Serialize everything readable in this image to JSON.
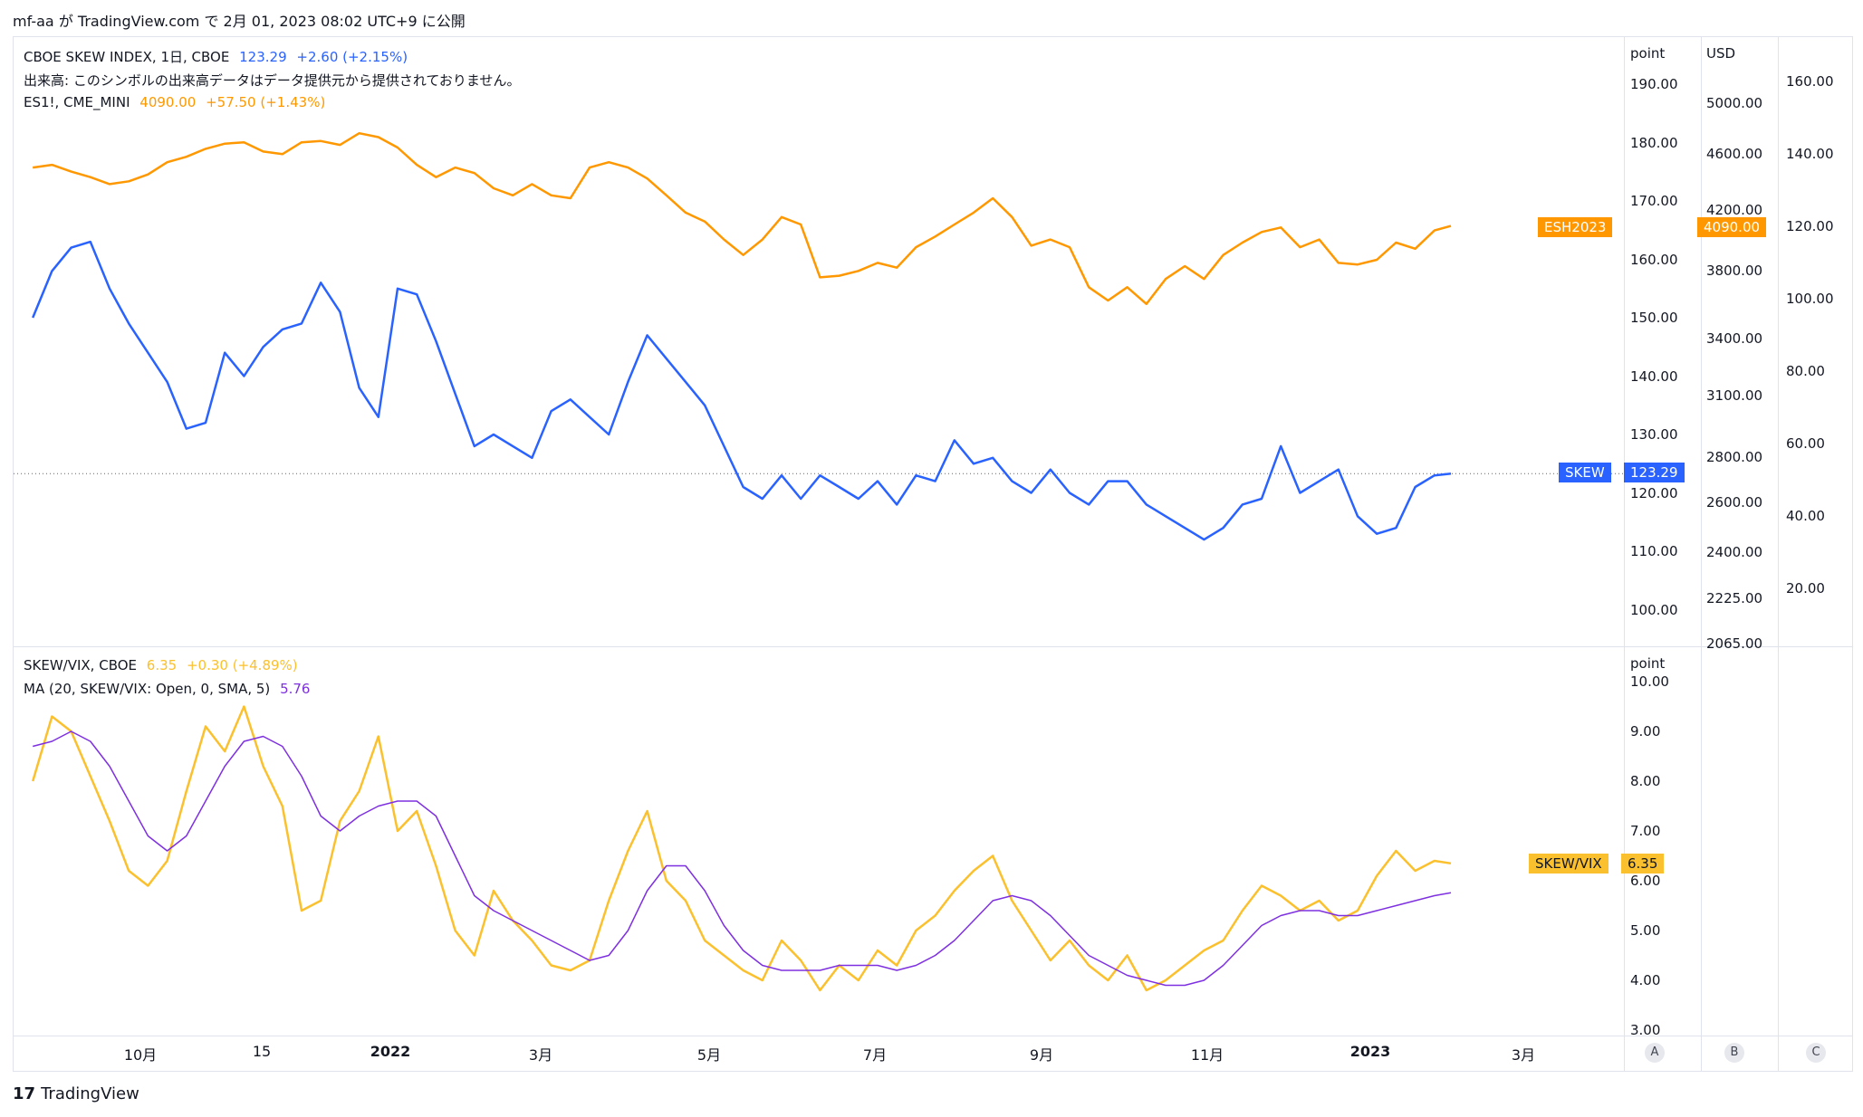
{
  "header": {
    "text": "mf-aa が TradingView.com で 2月 01, 2023 08:02 UTC+9 に公開"
  },
  "main_pane": {
    "legend": {
      "skew_name": "CBOE SKEW INDEX, 1日, CBOE",
      "skew_value": "123.29",
      "skew_change": "+2.60 (+2.15%)",
      "volume_note": "出来高: このシンボルの出来高データはデータ提供元から提供されておりません。",
      "es_name": "ES1!, CME_MINI",
      "es_value": "4090.00",
      "es_change": "+57.50 (+1.43%)"
    },
    "axis_point_header": "point",
    "axis_usd_header": "USD",
    "point_ticks": [
      "190.00",
      "180.00",
      "170.00",
      "160.00",
      "150.00",
      "140.00",
      "130.00",
      "120.00",
      "110.00",
      "100.00"
    ],
    "usd_ticks": [
      "5000.00",
      "4600.00",
      "4200.00",
      "3800.00",
      "3400.00",
      "3100.00",
      "2800.00",
      "2600.00",
      "2400.00",
      "2225.00",
      "2065.00"
    ],
    "c_ticks": [
      "160.00",
      "140.00",
      "120.00",
      "100.00",
      "80.00",
      "60.00",
      "40.00",
      "20.00"
    ],
    "tags": {
      "es_symbol": "ESH2023",
      "es_value": "4090.00",
      "skew_symbol": "SKEW",
      "skew_value": "123.29"
    }
  },
  "lower_pane": {
    "legend": {
      "ratio_name": "SKEW/VIX, CBOE",
      "ratio_value": "6.35",
      "ratio_change": "+0.30 (+4.89%)",
      "ma_name": "MA (20, SKEW/VIX: Open, 0, SMA, 5)",
      "ma_value": "5.76"
    },
    "axis_header": "point",
    "ticks": [
      "10.00",
      "9.00",
      "8.00",
      "7.00",
      "6.00",
      "5.00",
      "4.00",
      "3.00"
    ],
    "tags": {
      "symbol": "SKEW/VIX",
      "value": "6.35"
    }
  },
  "time_axis": [
    "10月",
    "15",
    "2022",
    "3月",
    "5月",
    "7月",
    "9月",
    "11月",
    "2023",
    "3月"
  ],
  "scale_buttons": [
    "A",
    "B",
    "C"
  ],
  "footer": {
    "logo": "TradingView"
  },
  "colors": {
    "skew": "#2962ff",
    "es": "#ff9800",
    "ratio": "#fbc02d",
    "ma": "#7e30e1"
  },
  "chart_data": [
    {
      "type": "line",
      "series": [
        {
          "name": "SKEW",
          "x": [
            "2021-09-01",
            "2021-09-08",
            "2021-09-15",
            "2021-09-22",
            "2021-09-29",
            "2021-10-06",
            "2021-10-13",
            "2021-10-20",
            "2021-10-27",
            "2021-11-03",
            "2021-11-10",
            "2021-11-17",
            "2021-11-24",
            "2021-12-01",
            "2021-12-08",
            "2021-12-15",
            "2021-12-22",
            "2021-12-29",
            "2022-01-05",
            "2022-01-12",
            "2022-01-19",
            "2022-01-26",
            "2022-02-02",
            "2022-02-09",
            "2022-02-16",
            "2022-02-23",
            "2022-03-02",
            "2022-03-09",
            "2022-03-16",
            "2022-03-23",
            "2022-03-30",
            "2022-04-06",
            "2022-04-13",
            "2022-04-20",
            "2022-04-27",
            "2022-05-04",
            "2022-05-11",
            "2022-05-18",
            "2022-05-25",
            "2022-06-01",
            "2022-06-08",
            "2022-06-15",
            "2022-06-22",
            "2022-06-29",
            "2022-07-06",
            "2022-07-13",
            "2022-07-20",
            "2022-07-27",
            "2022-08-03",
            "2022-08-10",
            "2022-08-17",
            "2022-08-24",
            "2022-08-31",
            "2022-09-07",
            "2022-09-14",
            "2022-09-21",
            "2022-09-28",
            "2022-10-05",
            "2022-10-12",
            "2022-10-19",
            "2022-10-26",
            "2022-11-02",
            "2022-11-09",
            "2022-11-16",
            "2022-11-23",
            "2022-11-30",
            "2022-12-07",
            "2022-12-14",
            "2022-12-21",
            "2022-12-28",
            "2023-01-04",
            "2023-01-11",
            "2023-01-18",
            "2023-01-25",
            "2023-01-31"
          ],
          "values": [
            150,
            158,
            162,
            163,
            155,
            149,
            144,
            139,
            131,
            132,
            144,
            140,
            145,
            148,
            149,
            156,
            151,
            138,
            133,
            155,
            154,
            146,
            137,
            128,
            130,
            128,
            126,
            134,
            136,
            133,
            130,
            139,
            147,
            143,
            139,
            135,
            128,
            121,
            119,
            123,
            119,
            123,
            121,
            119,
            122,
            118,
            123,
            122,
            129,
            125,
            126,
            122,
            120,
            124,
            120,
            118,
            122,
            122,
            118,
            116,
            114,
            112,
            114,
            118,
            119,
            128,
            120,
            122,
            124,
            116,
            113,
            114,
            121,
            123,
            123.29
          ]
        },
        {
          "name": "ES1!",
          "x": [
            "2021-09-01",
            "2021-09-08",
            "2021-09-15",
            "2021-09-22",
            "2021-09-29",
            "2021-10-06",
            "2021-10-13",
            "2021-10-20",
            "2021-10-27",
            "2021-11-03",
            "2021-11-10",
            "2021-11-17",
            "2021-11-24",
            "2021-12-01",
            "2021-12-08",
            "2021-12-15",
            "2021-12-22",
            "2021-12-29",
            "2022-01-05",
            "2022-01-12",
            "2022-01-19",
            "2022-01-26",
            "2022-02-02",
            "2022-02-09",
            "2022-02-16",
            "2022-02-23",
            "2022-03-02",
            "2022-03-09",
            "2022-03-16",
            "2022-03-23",
            "2022-03-30",
            "2022-04-06",
            "2022-04-13",
            "2022-04-20",
            "2022-04-27",
            "2022-05-04",
            "2022-05-11",
            "2022-05-18",
            "2022-05-25",
            "2022-06-01",
            "2022-06-08",
            "2022-06-15",
            "2022-06-22",
            "2022-06-29",
            "2022-07-06",
            "2022-07-13",
            "2022-07-20",
            "2022-07-27",
            "2022-08-03",
            "2022-08-10",
            "2022-08-17",
            "2022-08-24",
            "2022-08-31",
            "2022-09-07",
            "2022-09-14",
            "2022-09-21",
            "2022-09-28",
            "2022-10-05",
            "2022-10-12",
            "2022-10-19",
            "2022-10-26",
            "2022-11-02",
            "2022-11-09",
            "2022-11-16",
            "2022-11-23",
            "2022-11-30",
            "2022-12-07",
            "2022-12-14",
            "2022-12-21",
            "2022-12-28",
            "2023-01-04",
            "2023-01-11",
            "2023-01-18",
            "2023-01-25",
            "2023-01-31"
          ],
          "values": [
            4500,
            4520,
            4470,
            4430,
            4380,
            4400,
            4450,
            4540,
            4580,
            4640,
            4680,
            4690,
            4620,
            4600,
            4690,
            4700,
            4670,
            4760,
            4730,
            4650,
            4520,
            4430,
            4500,
            4460,
            4350,
            4300,
            4380,
            4300,
            4280,
            4500,
            4540,
            4500,
            4420,
            4300,
            4180,
            4120,
            4000,
            3900,
            4000,
            4150,
            4100,
            3760,
            3770,
            3800,
            3850,
            3820,
            3950,
            4020,
            4100,
            4180,
            4280,
            4150,
            3960,
            4000,
            3950,
            3700,
            3620,
            3700,
            3600,
            3750,
            3830,
            3750,
            3900,
            3980,
            4050,
            4080,
            3950,
            4000,
            3850,
            3840,
            3870,
            3980,
            3940,
            4060,
            4090
          ]
        }
      ],
      "y_axes": [
        {
          "unit": "point",
          "ylim": [
            95,
            195
          ],
          "series": "SKEW"
        },
        {
          "unit": "USD",
          "scale": "log",
          "ylim": [
            2065,
            5300
          ],
          "series": "ES1!"
        }
      ],
      "grid": false,
      "legend": "top-left"
    },
    {
      "type": "line",
      "series": [
        {
          "name": "SKEW/VIX",
          "x": [
            "2021-09-01",
            "2021-09-08",
            "2021-09-15",
            "2021-09-22",
            "2021-09-29",
            "2021-10-06",
            "2021-10-13",
            "2021-10-20",
            "2021-10-27",
            "2021-11-03",
            "2021-11-10",
            "2021-11-17",
            "2021-11-24",
            "2021-12-01",
            "2021-12-08",
            "2021-12-15",
            "2021-12-22",
            "2021-12-29",
            "2022-01-05",
            "2022-01-12",
            "2022-01-19",
            "2022-01-26",
            "2022-02-02",
            "2022-02-09",
            "2022-02-16",
            "2022-02-23",
            "2022-03-02",
            "2022-03-09",
            "2022-03-16",
            "2022-03-23",
            "2022-03-30",
            "2022-04-06",
            "2022-04-13",
            "2022-04-20",
            "2022-04-27",
            "2022-05-04",
            "2022-05-11",
            "2022-05-18",
            "2022-05-25",
            "2022-06-01",
            "2022-06-08",
            "2022-06-15",
            "2022-06-22",
            "2022-06-29",
            "2022-07-06",
            "2022-07-13",
            "2022-07-20",
            "2022-07-27",
            "2022-08-03",
            "2022-08-10",
            "2022-08-17",
            "2022-08-24",
            "2022-08-31",
            "2022-09-07",
            "2022-09-14",
            "2022-09-21",
            "2022-09-28",
            "2022-10-05",
            "2022-10-12",
            "2022-10-19",
            "2022-10-26",
            "2022-11-02",
            "2022-11-09",
            "2022-11-16",
            "2022-11-23",
            "2022-11-30",
            "2022-12-07",
            "2022-12-14",
            "2022-12-21",
            "2022-12-28",
            "2023-01-04",
            "2023-01-11",
            "2023-01-18",
            "2023-01-25",
            "2023-01-31"
          ],
          "values": [
            8.0,
            9.3,
            9.0,
            8.1,
            7.2,
            6.2,
            5.9,
            6.4,
            7.8,
            9.1,
            8.6,
            9.5,
            8.3,
            7.5,
            5.4,
            5.6,
            7.2,
            7.8,
            8.9,
            7.0,
            7.4,
            6.3,
            5.0,
            4.5,
            5.8,
            5.2,
            4.8,
            4.3,
            4.2,
            4.4,
            5.6,
            6.6,
            7.4,
            6.0,
            5.6,
            4.8,
            4.5,
            4.2,
            4.0,
            4.8,
            4.4,
            3.8,
            4.3,
            4.0,
            4.6,
            4.3,
            5.0,
            5.3,
            5.8,
            6.2,
            6.5,
            5.6,
            5.0,
            4.4,
            4.8,
            4.3,
            4.0,
            4.5,
            3.8,
            4.0,
            4.3,
            4.6,
            4.8,
            5.4,
            5.9,
            5.7,
            5.4,
            5.6,
            5.2,
            5.4,
            6.1,
            6.6,
            6.2,
            6.4,
            6.35
          ]
        },
        {
          "name": "MA",
          "x": [
            "2021-09-01",
            "2021-09-08",
            "2021-09-15",
            "2021-09-22",
            "2021-09-29",
            "2021-10-06",
            "2021-10-13",
            "2021-10-20",
            "2021-10-27",
            "2021-11-03",
            "2021-11-10",
            "2021-11-17",
            "2021-11-24",
            "2021-12-01",
            "2021-12-08",
            "2021-12-15",
            "2021-12-22",
            "2021-12-29",
            "2022-01-05",
            "2022-01-12",
            "2022-01-19",
            "2022-01-26",
            "2022-02-02",
            "2022-02-09",
            "2022-02-16",
            "2022-02-23",
            "2022-03-02",
            "2022-03-09",
            "2022-03-16",
            "2022-03-23",
            "2022-03-30",
            "2022-04-06",
            "2022-04-13",
            "2022-04-20",
            "2022-04-27",
            "2022-05-04",
            "2022-05-11",
            "2022-05-18",
            "2022-05-25",
            "2022-06-01",
            "2022-06-08",
            "2022-06-15",
            "2022-06-22",
            "2022-06-29",
            "2022-07-06",
            "2022-07-13",
            "2022-07-20",
            "2022-07-27",
            "2022-08-03",
            "2022-08-10",
            "2022-08-17",
            "2022-08-24",
            "2022-08-31",
            "2022-09-07",
            "2022-09-14",
            "2022-09-21",
            "2022-09-28",
            "2022-10-05",
            "2022-10-12",
            "2022-10-19",
            "2022-10-26",
            "2022-11-02",
            "2022-11-09",
            "2022-11-16",
            "2022-11-23",
            "2022-11-30",
            "2022-12-07",
            "2022-12-14",
            "2022-12-21",
            "2022-12-28",
            "2023-01-04",
            "2023-01-11",
            "2023-01-18",
            "2023-01-25",
            "2023-01-31"
          ],
          "values": [
            8.7,
            8.8,
            9.0,
            8.8,
            8.3,
            7.6,
            6.9,
            6.6,
            6.9,
            7.6,
            8.3,
            8.8,
            8.9,
            8.7,
            8.1,
            7.3,
            7.0,
            7.3,
            7.5,
            7.6,
            7.6,
            7.3,
            6.5,
            5.7,
            5.4,
            5.2,
            5.0,
            4.8,
            4.6,
            4.4,
            4.5,
            5.0,
            5.8,
            6.3,
            6.3,
            5.8,
            5.1,
            4.6,
            4.3,
            4.2,
            4.2,
            4.2,
            4.3,
            4.3,
            4.3,
            4.2,
            4.3,
            4.5,
            4.8,
            5.2,
            5.6,
            5.7,
            5.6,
            5.3,
            4.9,
            4.5,
            4.3,
            4.1,
            4.0,
            3.9,
            3.9,
            4.0,
            4.3,
            4.7,
            5.1,
            5.3,
            5.4,
            5.4,
            5.3,
            5.3,
            5.4,
            5.5,
            5.6,
            5.7,
            5.76
          ]
        }
      ],
      "ylim": [
        3,
        10
      ],
      "grid": false,
      "legend": "top-left"
    }
  ]
}
